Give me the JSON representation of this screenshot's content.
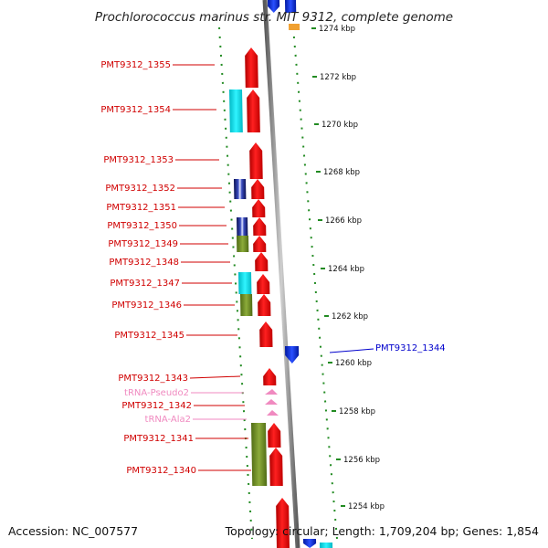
{
  "title": "Prochlorococcus marinus str. MIT 9312, complete genome",
  "footer": {
    "accession": "Accession: NC_007577",
    "summary": "Topology: circular; Length: 1,709,204 bp; Genes: 1,854"
  },
  "kbp_labels": [
    "1274 kbp",
    "1272 kbp",
    "1270 kbp",
    "1268 kbp",
    "1266 kbp",
    "1264 kbp",
    "1262 kbp",
    "1260 kbp",
    "1258 kbp",
    "1256 kbp",
    "1254 kbp"
  ],
  "gene_labels": [
    {
      "text": "PMT9312_1355",
      "color": "#d00000"
    },
    {
      "text": "PMT9312_1354",
      "color": "#d00000"
    },
    {
      "text": "PMT9312_1353",
      "color": "#d00000"
    },
    {
      "text": "PMT9312_1352",
      "color": "#d00000"
    },
    {
      "text": "PMT9312_1351",
      "color": "#d00000"
    },
    {
      "text": "PMT9312_1350",
      "color": "#d00000"
    },
    {
      "text": "PMT9312_1349",
      "color": "#d00000"
    },
    {
      "text": "PMT9312_1348",
      "color": "#d00000"
    },
    {
      "text": "PMT9312_1347",
      "color": "#d00000"
    },
    {
      "text": "PMT9312_1346",
      "color": "#d00000"
    },
    {
      "text": "PMT9312_1345",
      "color": "#d00000"
    },
    {
      "text": "PMT9312_1343",
      "color": "#d00000"
    },
    {
      "text": "tRNA-Pseudo2",
      "color": "#f08ac0"
    },
    {
      "text": "PMT9312_1342",
      "color": "#d00000"
    },
    {
      "text": "tRNA-Ala2",
      "color": "#f08ac0"
    },
    {
      "text": "PMT9312_1341",
      "color": "#d00000"
    },
    {
      "text": "PMT9312_1340",
      "color": "#d00000"
    }
  ],
  "right_label": {
    "text": "PMT9312_1344",
    "color": "#0000cc"
  },
  "colors": {
    "cds": "#ee0000",
    "cds_reverse": "#1133dd",
    "trna": "#f08ac0",
    "cyan_feature": "#00e0e8",
    "olive_feature": "#6b8e23",
    "navy_feature": "#1a237e",
    "tick_green": "#228b22",
    "backbone": "#8a8a8a"
  }
}
